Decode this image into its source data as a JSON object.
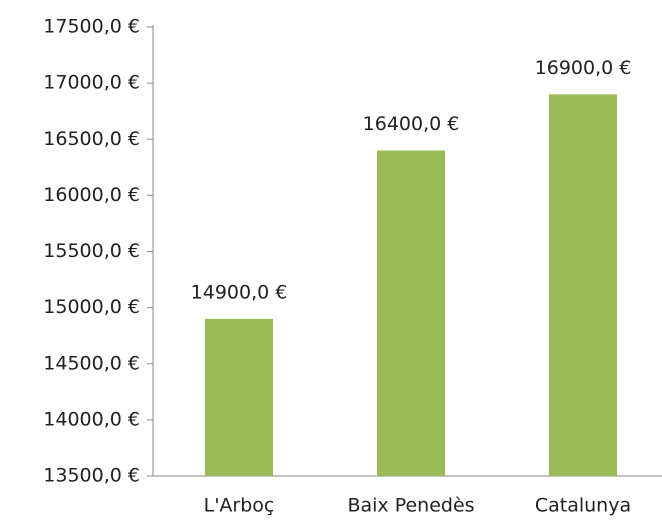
{
  "chart_data": {
    "type": "bar",
    "categories": [
      "L'Arboç",
      "Baix Penedès",
      "Catalunya"
    ],
    "values": [
      14900,
      16400,
      16900
    ],
    "value_labels": [
      "14900,0 €",
      "16400,0 €",
      "16900,0 €"
    ],
    "color": "#9bbb59",
    "ylim": [
      13500,
      17500
    ],
    "yticks": [
      {
        "value": 13500,
        "label": "13500,0 €"
      },
      {
        "value": 14000,
        "label": "14000,0 €"
      },
      {
        "value": 14500,
        "label": "14500,0 €"
      },
      {
        "value": 15000,
        "label": "15000,0 €"
      },
      {
        "value": 15500,
        "label": "15500,0 €"
      },
      {
        "value": 16000,
        "label": "16000,0 €"
      },
      {
        "value": 16500,
        "label": "16500,0 €"
      },
      {
        "value": 17000,
        "label": "17000,0 €"
      },
      {
        "value": 17500,
        "label": "17500,0 €"
      }
    ],
    "grid": false
  }
}
